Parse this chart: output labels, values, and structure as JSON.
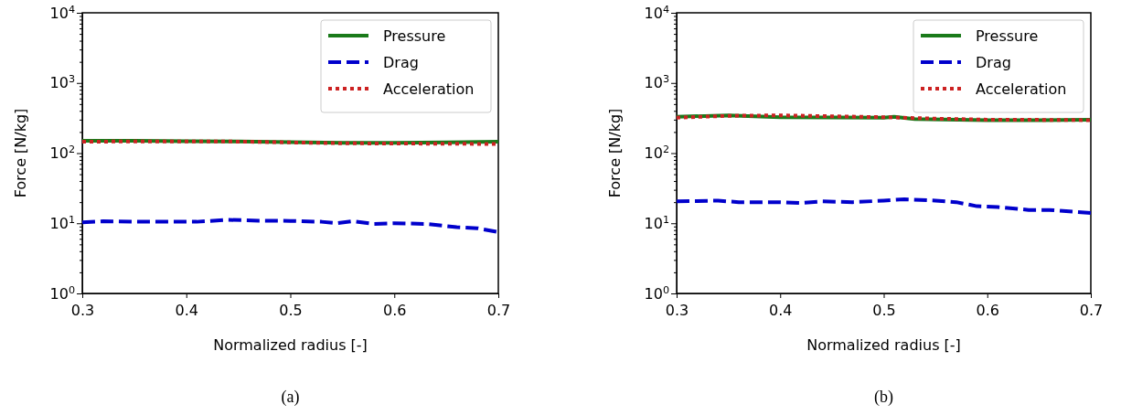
{
  "chart_data": [
    {
      "type": "line",
      "xlabel": "Normalized radius [-]",
      "ylabel": "Force [N/kg]",
      "annotations": [
        "(a)"
      ],
      "log": "y",
      "legend": "top right",
      "grid": false,
      "xlim": [
        0.3,
        0.7
      ],
      "xticks": [
        0.3,
        0.4,
        0.5,
        0.6,
        0.7
      ],
      "ylim": [
        1,
        10000
      ],
      "yticks": [
        {
          "value": 1,
          "label": "10$^{0}$"
        },
        {
          "value": 2,
          "label": null
        },
        {
          "value": 3,
          "label": null
        },
        {
          "value": 4,
          "label": null
        },
        {
          "value": 5,
          "label": null
        },
        {
          "value": 6,
          "label": null
        },
        {
          "value": 7,
          "label": null
        },
        {
          "value": 8,
          "label": null
        },
        {
          "value": 9,
          "label": null
        },
        {
          "value": 10,
          "label": "10$^{1}$"
        },
        {
          "value": 20,
          "label": null
        },
        {
          "value": 30,
          "label": null
        },
        {
          "value": 40,
          "label": null
        },
        {
          "value": 50,
          "label": null
        },
        {
          "value": 60,
          "label": null
        },
        {
          "value": 70,
          "label": null
        },
        {
          "value": 80,
          "label": null
        },
        {
          "value": 90,
          "label": null
        },
        {
          "value": 100,
          "label": "10$^{2}$"
        },
        {
          "value": 200,
          "label": null
        },
        {
          "value": 300,
          "label": null
        },
        {
          "value": 400,
          "label": null
        },
        {
          "value": 500,
          "label": null
        },
        {
          "value": 600,
          "label": null
        },
        {
          "value": 700,
          "label": null
        },
        {
          "value": 800,
          "label": null
        },
        {
          "value": 900,
          "label": null
        },
        {
          "value": 1000,
          "label": "10$^{3}$"
        },
        {
          "value": 2000,
          "label": null
        },
        {
          "value": 3000,
          "label": null
        },
        {
          "value": 4000,
          "label": null
        },
        {
          "value": 5000,
          "label": null
        },
        {
          "value": 6000,
          "label": null
        },
        {
          "value": 7000,
          "label": null
        },
        {
          "value": 8000,
          "label": null
        },
        {
          "value": 9000,
          "label": null
        },
        {
          "value": 10000,
          "label": "10$^{4}$"
        }
      ],
      "series": [
        {
          "name": "Pressure",
          "color": "#1a7a1a",
          "line_style": "solid",
          "x": [
            0.3,
            0.35,
            0.4,
            0.45,
            0.5,
            0.55,
            0.6,
            0.65,
            0.7
          ],
          "values": [
            150,
            150,
            148,
            147,
            143,
            140,
            140,
            142,
            145
          ]
        },
        {
          "name": "Drag",
          "color": "#0000cc",
          "line_style": "dashed",
          "x": [
            0.3,
            0.32,
            0.35,
            0.41,
            0.44,
            0.47,
            0.5,
            0.53,
            0.545,
            0.56,
            0.58,
            0.6,
            0.63,
            0.66,
            0.68,
            0.7
          ],
          "values": [
            10.3,
            10.7,
            10.5,
            10.5,
            11.2,
            10.9,
            10.8,
            10.5,
            10.0,
            10.7,
            9.8,
            10.0,
            9.8,
            8.8,
            8.5,
            7.5
          ]
        },
        {
          "name": "Acceleration",
          "color": "#cc2222",
          "line_style": "dotted",
          "x": [
            0.3,
            0.35,
            0.4,
            0.45,
            0.5,
            0.55,
            0.6,
            0.65,
            0.7
          ],
          "values": [
            145,
            147,
            147,
            146,
            142,
            138,
            137,
            136,
            135
          ]
        }
      ]
    },
    {
      "type": "line",
      "xlabel": "Normalized radius [-]",
      "ylabel": "Force [N/kg]",
      "annotations": [
        "(b)"
      ],
      "log": "y",
      "legend": "top right",
      "grid": false,
      "xlim": [
        0.3,
        0.7
      ],
      "xticks": [
        0.3,
        0.4,
        0.5,
        0.6,
        0.7
      ],
      "ylim": [
        1,
        10000
      ],
      "yticks": [
        {
          "value": 1,
          "label": "10$^{0}$"
        },
        {
          "value": 2,
          "label": null
        },
        {
          "value": 3,
          "label": null
        },
        {
          "value": 4,
          "label": null
        },
        {
          "value": 5,
          "label": null
        },
        {
          "value": 6,
          "label": null
        },
        {
          "value": 7,
          "label": null
        },
        {
          "value": 8,
          "label": null
        },
        {
          "value": 9,
          "label": null
        },
        {
          "value": 10,
          "label": "10$^{1}$"
        },
        {
          "value": 20,
          "label": null
        },
        {
          "value": 30,
          "label": null
        },
        {
          "value": 40,
          "label": null
        },
        {
          "value": 50,
          "label": null
        },
        {
          "value": 60,
          "label": null
        },
        {
          "value": 70,
          "label": null
        },
        {
          "value": 80,
          "label": null
        },
        {
          "value": 90,
          "label": null
        },
        {
          "value": 100,
          "label": "10$^{2}$"
        },
        {
          "value": 200,
          "label": null
        },
        {
          "value": 300,
          "label": null
        },
        {
          "value": 400,
          "label": null
        },
        {
          "value": 500,
          "label": null
        },
        {
          "value": 600,
          "label": null
        },
        {
          "value": 700,
          "label": null
        },
        {
          "value": 800,
          "label": null
        },
        {
          "value": 900,
          "label": null
        },
        {
          "value": 1000,
          "label": "10$^{3}$"
        },
        {
          "value": 2000,
          "label": null
        },
        {
          "value": 3000,
          "label": null
        },
        {
          "value": 4000,
          "label": null
        },
        {
          "value": 5000,
          "label": null
        },
        {
          "value": 6000,
          "label": null
        },
        {
          "value": 7000,
          "label": null
        },
        {
          "value": 8000,
          "label": null
        },
        {
          "value": 9000,
          "label": null
        },
        {
          "value": 10000,
          "label": "10$^{4}$"
        }
      ],
      "series": [
        {
          "name": "Pressure",
          "color": "#1a7a1a",
          "line_style": "solid",
          "x": [
            0.3,
            0.35,
            0.4,
            0.45,
            0.5,
            0.51,
            0.53,
            0.6,
            0.65,
            0.7
          ],
          "values": [
            330,
            345,
            325,
            322,
            320,
            330,
            305,
            295,
            295,
            300
          ]
        },
        {
          "name": "Drag",
          "color": "#0000cc",
          "line_style": "dashed",
          "x": [
            0.3,
            0.34,
            0.36,
            0.4,
            0.42,
            0.44,
            0.47,
            0.5,
            0.52,
            0.55,
            0.57,
            0.59,
            0.61,
            0.64,
            0.66,
            0.7
          ],
          "values": [
            20.5,
            21,
            20,
            20,
            19.5,
            20.5,
            20,
            21,
            22,
            21,
            20,
            17.5,
            17,
            15.5,
            15.5,
            14
          ]
        },
        {
          "name": "Acceleration",
          "color": "#cc2222",
          "line_style": "dotted",
          "x": [
            0.3,
            0.35,
            0.4,
            0.45,
            0.5,
            0.55,
            0.6,
            0.65,
            0.7
          ],
          "values": [
            320,
            340,
            345,
            335,
            325,
            310,
            300,
            298,
            295
          ]
        }
      ]
    }
  ]
}
